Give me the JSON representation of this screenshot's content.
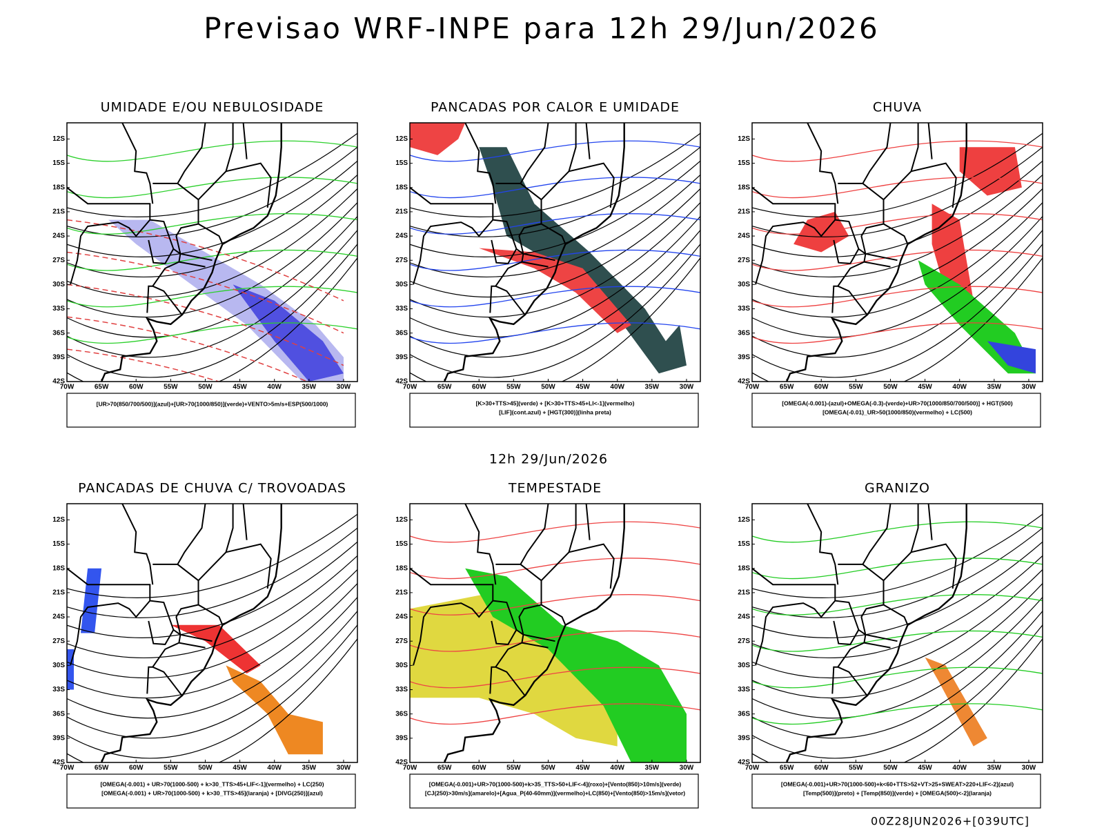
{
  "header": {
    "title": "Previsao WRF-INPE  para 12h 29/Jun/2026"
  },
  "subheader": "12h 29/Jun/2026",
  "footer": "00Z28JUN2026+[039UTC]",
  "lat_labels": [
    "12S",
    "15S",
    "18S",
    "21S",
    "24S",
    "27S",
    "30S",
    "33S",
    "36S",
    "39S",
    "42S"
  ],
  "lon_labels": [
    "70W",
    "65W",
    "60W",
    "55W",
    "50W",
    "45W",
    "40W",
    "35W",
    "30W"
  ],
  "panels": [
    {
      "title": "UMIDADE E/OU NEBULOSIDADE",
      "legend": [
        "[UR>70(850/700/500)](azul)+[UR>70(1000/850)](verde)+VENTO>5m/s+ESP(500/1000)"
      ]
    },
    {
      "title": "PANCADAS POR CALOR E UMIDADE",
      "legend": [
        "[K>30+TTS>45](verde) + [K>30+TTS>45+LI<-1](vermelho)",
        "[LIF](cont.azul) + [HGT(300)](linha preta)"
      ]
    },
    {
      "title": "CHUVA",
      "legend": [
        "[OMEGA(-0.001)-(azul)+OMEGA(-0.3)-(verde)+UR>70(1000/850/700/500)] + HGT(500)",
        "[OMEGA(-0.01)_UR>50(1000/850)(vermelho) + LC(500)"
      ]
    },
    {
      "title": "PANCADAS DE CHUVA C/ TROVOADAS",
      "legend": [
        "[OMEGA(-0.001) + UR>70(1000-500) + k>30_TTS>45+LIF<-1](vermelho) + LC(250)",
        "[OMEGA(-0.001) + UR>70(1000-500) + k>30_TTS>45](laranja) + [DIVG(250)](azul)"
      ]
    },
    {
      "title": "TEMPESTADE",
      "legend": [
        "[OMEGA(-0.001)+UR>70(1000-500)+k>35_TTS>50+LIF<-4](roxo)+[Vento(850)>10m/s](verde)",
        "[CJ(250)>30m/s](amarelo)+[Agua_P(40-60mm)](vermelho)+LC(850)+[Vento(850)>15m/s](vetor)"
      ]
    },
    {
      "title": "GRANIZO",
      "legend": [
        "[OMEGA(-0.001)+UR>70(1000-500)+k<60+TTS>52+VT>25+SWEAT>220+LIF<-2](azul)",
        "[Temp(500)](preto) + [Temp(850)](verde) + [OMEGA(500)<-2](laranja)"
      ]
    }
  ]
}
